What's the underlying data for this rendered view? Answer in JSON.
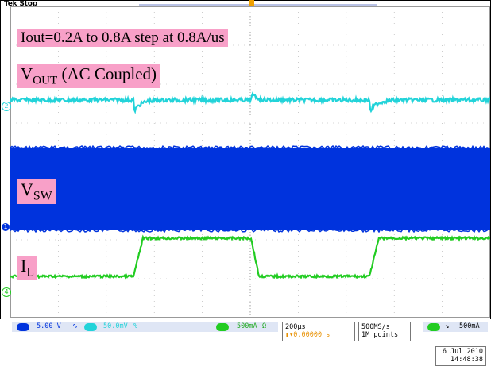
{
  "status": "Tek Stop",
  "annotations": {
    "iout": "Iout=0.2A to 0.8A step at 0.8A/us",
    "vout_main": "V",
    "vout_sub": "OUT",
    "vout_rest": " (AC Coupled)",
    "vsw_main": "V",
    "vsw_sub": "SW",
    "il_main": "I",
    "il_sub": "L"
  },
  "channel_markers": {
    "ch2": "2",
    "ch1": "1",
    "ch4": "4"
  },
  "readouts": {
    "ch1_scale": "5.00 V",
    "ch2_scale": "50.0mV",
    "ch2_suffix": "%",
    "ch4_scale": "500mA",
    "ch4_suffix": "Ω",
    "timebase": "200µs",
    "trig_offset": "0.00000 s",
    "sample_rate": "500MS/s",
    "record_length": "1M points",
    "trigger_level": "500mA",
    "date": "6 Jul  2010",
    "time": "14:48:38"
  },
  "colors": {
    "ch1": "#0033dd",
    "ch2": "#22d3d9",
    "ch4": "#22cc22",
    "annotation_bg": "#f8a0c8",
    "trigger": "#f0a000"
  }
}
